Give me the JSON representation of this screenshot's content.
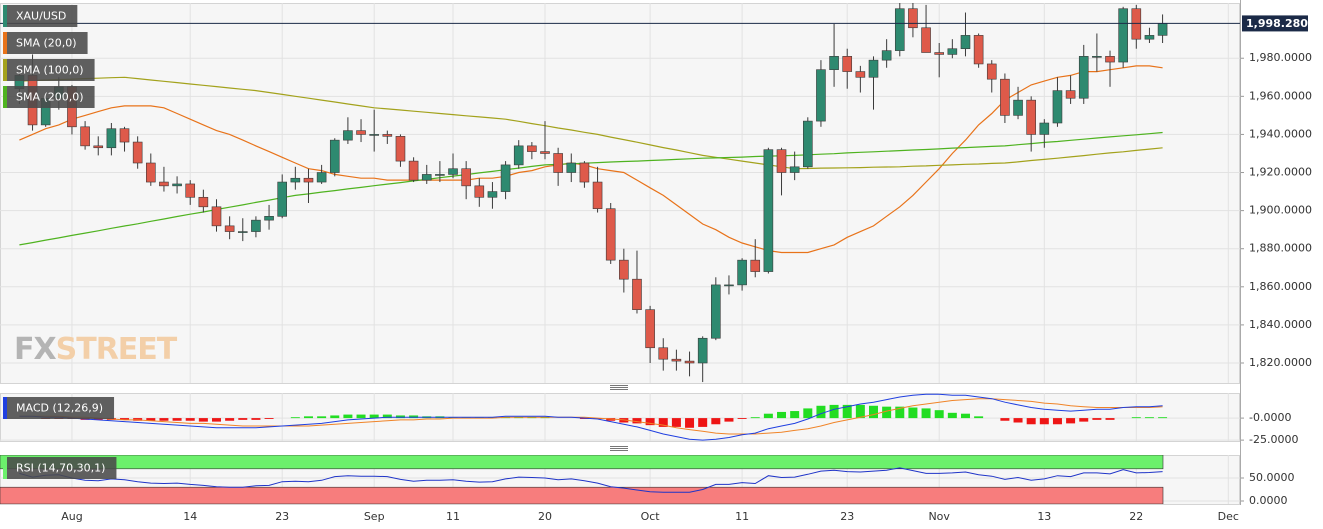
{
  "chart_data": [
    {
      "type": "candlestick",
      "name": "XAU/USD",
      "color_up": "#2e8a70",
      "color_down": "#de5a4a",
      "grid": true,
      "watermark": [
        "FX",
        "STREET"
      ],
      "categories": [
        null,
        null,
        null,
        null,
        "Aug",
        null,
        null,
        null,
        null,
        null,
        null,
        null,
        null,
        "14",
        null,
        null,
        null,
        null,
        null,
        null,
        "23",
        null,
        null,
        null,
        null,
        null,
        null,
        "Sep",
        null,
        null,
        null,
        null,
        null,
        "11",
        null,
        null,
        null,
        null,
        null,
        null,
        "20",
        null,
        null,
        null,
        null,
        null,
        null,
        null,
        "Oct",
        null,
        null,
        null,
        null,
        null,
        null,
        "11",
        null,
        null,
        null,
        null,
        null,
        null,
        null,
        "23",
        null,
        null,
        null,
        null,
        null,
        null,
        "Nov",
        null,
        null,
        null,
        null,
        null,
        null,
        null,
        "13",
        null,
        null,
        null,
        null,
        null,
        null,
        "22",
        null,
        null,
        null,
        null,
        null,
        null,
        "Dec"
      ],
      "open": [
        1964,
        1971,
        1945,
        1959,
        1965,
        1944,
        1934,
        1933,
        1943,
        1936,
        1925,
        1915,
        1913,
        1914,
        1907,
        1902,
        1892,
        1889,
        1889,
        1895,
        1897,
        1915,
        1917,
        1915,
        1920,
        1937,
        1942,
        1940,
        1940,
        1939,
        1926,
        1916,
        1919,
        1919,
        1922,
        1913,
        1907,
        1910,
        1924,
        1934,
        1931,
        1930,
        1920,
        1925,
        1915,
        1901,
        1874,
        1864,
        1848,
        1828,
        1822,
        1821,
        1820,
        1833,
        1861,
        1861,
        1874,
        1868,
        1932,
        1920,
        1923,
        1947,
        1974,
        1981,
        1973,
        1970,
        1979,
        1984,
        2006,
        1996,
        1983,
        1982,
        1985,
        1992,
        1977,
        1969,
        1950,
        1958,
        1940,
        1946,
        1963,
        1959,
        1981,
        1981,
        1978,
        2006,
        1990,
        1992,
        null,
        null,
        null,
        null,
        null
      ],
      "high": [
        1973,
        1982,
        1962,
        1970,
        1966,
        1947,
        1939,
        1946,
        1944,
        1939,
        1930,
        1923,
        1918,
        1916,
        1911,
        1906,
        1897,
        1896,
        1897,
        1903,
        1919,
        1923,
        1922,
        1924,
        1938,
        1949,
        1948,
        1953,
        1942,
        1940,
        1928,
        1924,
        1926,
        1930,
        1926,
        1917,
        1915,
        1926,
        1937,
        1936,
        1947,
        1933,
        1930,
        1926,
        1923,
        1904,
        1880,
        1879,
        1850,
        1833,
        1827,
        1826,
        1834,
        1865,
        1866,
        1875,
        1885,
        1933,
        1933,
        1931,
        1949,
        1979,
        1998,
        1985,
        1976,
        1981,
        1990,
        2009,
        2009,
        2008,
        1988,
        1990,
        2004,
        1993,
        1979,
        1972,
        1965,
        1960,
        1948,
        1970,
        1971,
        1987,
        1993,
        1984,
        2007,
        2008,
        1996,
        2003,
        null,
        null,
        null,
        null,
        null
      ],
      "low": [
        1956,
        1942,
        1944,
        1953,
        1940,
        1932,
        1929,
        1929,
        1931,
        1922,
        1913,
        1910,
        1909,
        1903,
        1899,
        1889,
        1885,
        1884,
        1886,
        1890,
        1896,
        1911,
        1904,
        1914,
        1918,
        1935,
        1936,
        1931,
        1935,
        1923,
        1915,
        1914,
        1915,
        1917,
        1906,
        1902,
        1901,
        1906,
        1922,
        1927,
        1927,
        1913,
        1915,
        1912,
        1899,
        1872,
        1857,
        1846,
        1820,
        1816,
        1816,
        1813,
        1810,
        1832,
        1856,
        1858,
        1865,
        1867,
        1908,
        1916,
        1922,
        1944,
        1965,
        1964,
        1962,
        1953,
        1975,
        1981,
        1991,
        1983,
        1970,
        1980,
        1981,
        1975,
        1962,
        1946,
        1948,
        1931,
        1933,
        1944,
        1956,
        1956,
        1973,
        1965,
        1975,
        1985,
        1988,
        1988,
        null,
        null,
        null,
        null,
        null
      ],
      "close": [
        1971,
        1945,
        1959,
        1965,
        1944,
        1934,
        1933,
        1943,
        1936,
        1925,
        1915,
        1913,
        1914,
        1907,
        1902,
        1892,
        1889,
        1889,
        1895,
        1897,
        1915,
        1917,
        1915,
        1920,
        1937,
        1942,
        1940,
        1940,
        1939,
        1926,
        1916,
        1919,
        1919,
        1922,
        1913,
        1907,
        1910,
        1924,
        1934,
        1931,
        1930,
        1920,
        1925,
        1915,
        1901,
        1874,
        1864,
        1848,
        1828,
        1822,
        1821,
        1820,
        1833,
        1861,
        1861,
        1874,
        1868,
        1932,
        1920,
        1923,
        1947,
        1974,
        1981,
        1973,
        1970,
        1979,
        1984,
        2006,
        1996,
        1983,
        1982,
        1985,
        1992,
        1977,
        1969,
        1950,
        1958,
        1940,
        1946,
        1963,
        1959,
        1981,
        1981,
        1978,
        2006,
        1990,
        1992,
        1998.28,
        null,
        null,
        null,
        null,
        null
      ],
      "overlays": [
        {
          "name": "SMA (20,0)",
          "color": "#e8731a",
          "values": [
            1937,
            1940,
            1943,
            1945,
            1948,
            1950,
            1952,
            1954,
            1955,
            1955,
            1955,
            1954,
            1951,
            1948,
            1945,
            1942,
            1940,
            1937,
            1934,
            1931,
            1928,
            1925,
            1922,
            1921,
            1919,
            1918,
            1917,
            1917,
            1916,
            1916,
            1916,
            1916,
            1916,
            1916,
            1916,
            1917,
            1917,
            1918,
            1920,
            1921,
            1923,
            1924,
            1925,
            1924,
            1922,
            1921,
            1920,
            1916,
            1912,
            1908,
            1903,
            1898,
            1893,
            1890,
            1886,
            1883,
            1881,
            1879,
            1878,
            1878,
            1878,
            1880,
            1882,
            1886,
            1889,
            1892,
            1897,
            1902,
            1908,
            1915,
            1922,
            1930,
            1937,
            1945,
            1951,
            1958,
            1962,
            1966,
            1968,
            1970,
            1971,
            1973,
            1973,
            1974,
            1975,
            1976,
            1976,
            1975,
            null,
            null,
            null,
            null,
            null
          ]
        },
        {
          "name": "SMA (100,0)",
          "color": "#a3a21c",
          "values": [
            1968,
            1968.3,
            1968.5,
            1968.8,
            1969,
            1969.3,
            1969.5,
            1969.8,
            1970,
            1969.3,
            1968.6,
            1967.9,
            1967.2,
            1966.5,
            1965.8,
            1965.1,
            1964.4,
            1963.7,
            1963,
            1962,
            1961,
            1960,
            1959,
            1958,
            1957,
            1956,
            1955,
            1954,
            1953.4,
            1952.8,
            1952.2,
            1951.6,
            1951,
            1950.4,
            1949.8,
            1949.2,
            1948.6,
            1948,
            1946.9,
            1945.7,
            1944.6,
            1943.4,
            1942.3,
            1941.1,
            1940,
            1938.6,
            1937.3,
            1935.9,
            1934.5,
            1933.1,
            1931.8,
            1930.4,
            1929,
            1928,
            1927,
            1926,
            1925,
            1924,
            1923,
            1922,
            1922.1,
            1922.3,
            1922.4,
            1922.5,
            1922.6,
            1922.8,
            1922.9,
            1923,
            1923.3,
            1923.5,
            1923.8,
            1924,
            1924.3,
            1924.5,
            1924.8,
            1925,
            1925.6,
            1926.3,
            1926.9,
            1927.5,
            1928.2,
            1928.9,
            1929.6,
            1930.3,
            1930.9,
            1931.6,
            1932.3,
            1933,
            null,
            null,
            null,
            null,
            null
          ]
        },
        {
          "name": "SMA (200,0)",
          "color": "#4fb320",
          "values": [
            1882,
            1883.2,
            1884.5,
            1885.7,
            1887,
            1888.2,
            1889.4,
            1890.7,
            1891.9,
            1893.1,
            1894.4,
            1895.6,
            1896.9,
            1898.1,
            1899.3,
            1900.6,
            1901.8,
            1903,
            1904.3,
            1905.5,
            1906.8,
            1908,
            1908.8,
            1909.7,
            1910.5,
            1911.4,
            1912.2,
            1913.1,
            1913.9,
            1914.7,
            1915.6,
            1916.4,
            1917.3,
            1918.1,
            1918.9,
            1919.8,
            1920.6,
            1921.5,
            1922.3,
            1923.2,
            1924,
            1924.3,
            1924.6,
            1924.9,
            1925.2,
            1925.5,
            1925.8,
            1926,
            1926.3,
            1926.6,
            1926.9,
            1927.2,
            1927.5,
            1927.7,
            1927.9,
            1928.1,
            1928.4,
            1928.6,
            1928.8,
            1929,
            1929.3,
            1929.6,
            1929.9,
            1930.3,
            1930.6,
            1930.9,
            1931.2,
            1931.5,
            1931.8,
            1932.1,
            1932.4,
            1932.8,
            1933.1,
            1933.4,
            1933.7,
            1934,
            1934.6,
            1935.2,
            1935.8,
            1936.3,
            1936.9,
            1937.5,
            1938.1,
            1938.7,
            1939.3,
            1939.8,
            1940.4,
            1941,
            null,
            null,
            null,
            null,
            null
          ]
        }
      ],
      "ylim": [
        1809.5,
        2009
      ],
      "yticks": [
        {
          "value": 1820,
          "label": "1,820.0000"
        },
        {
          "value": 1840,
          "label": "1,840.0000"
        },
        {
          "value": 1860,
          "label": "1,860.0000"
        },
        {
          "value": 1880,
          "label": "1,880.0000"
        },
        {
          "value": 1900,
          "label": "1,900.0000"
        },
        {
          "value": 1920,
          "label": "1,920.0000"
        },
        {
          "value": 1940,
          "label": "1,940.0000"
        },
        {
          "value": 1960,
          "label": "1,960.0000"
        },
        {
          "value": 1980,
          "label": "1,980.0000"
        }
      ],
      "price_line": {
        "value": 1998.28,
        "label": "1,998.2800"
      }
    },
    {
      "type": "macd",
      "name": "MACD (12,26,9)",
      "macd_color": "#1f3fe0",
      "signal_color": "#f08428",
      "hist_up_color": "#22dd22",
      "hist_down_color": "#ee1515",
      "macd": [
        2,
        2,
        1,
        1,
        0,
        -1,
        -2,
        -3,
        -4,
        -5,
        -6,
        -7,
        -8,
        -9,
        -10,
        -11,
        -11,
        -11,
        -11,
        -10,
        -9,
        -8,
        -7,
        -6,
        -4,
        -2,
        -1,
        0,
        1,
        1,
        1,
        1,
        1,
        1,
        1,
        1,
        1,
        2,
        2,
        2,
        2,
        1,
        1,
        0,
        -1,
        -4,
        -7,
        -10,
        -14,
        -18,
        -21,
        -24,
        -25,
        -24,
        -22,
        -19,
        -17,
        -12,
        -9,
        -6,
        -1,
        5,
        10,
        13,
        16,
        18,
        21,
        24,
        26,
        27,
        27,
        26,
        26,
        24,
        22,
        18,
        15,
        12,
        10,
        9,
        8,
        9,
        10,
        10,
        12,
        13,
        13,
        14,
        null,
        null,
        null,
        null,
        null
      ],
      "signal": [
        2,
        2,
        2,
        2,
        1,
        1,
        0,
        -1,
        -2,
        -2,
        -3,
        -4,
        -5,
        -6,
        -6,
        -7,
        -8,
        -9,
        -9,
        -9,
        -9,
        -9,
        -9,
        -8,
        -7,
        -6,
        -5,
        -4,
        -3,
        -2,
        -2,
        -1,
        -1,
        0,
        0,
        0,
        0,
        1,
        1,
        1,
        1,
        1,
        1,
        1,
        0,
        -1,
        -2,
        -4,
        -6,
        -8,
        -11,
        -13,
        -15,
        -17,
        -18,
        -18,
        -18,
        -17,
        -16,
        -14,
        -12,
        -9,
        -5,
        -2,
        1,
        4,
        8,
        11,
        14,
        16,
        18,
        20,
        21,
        22,
        22,
        21,
        20,
        19,
        17,
        16,
        14,
        13,
        12,
        12,
        12,
        12,
        12,
        13,
        null,
        null,
        null,
        null,
        null
      ],
      "histogram": [
        0,
        0,
        -1,
        -1,
        -1,
        -2,
        -2,
        -2,
        -2,
        -3,
        -3,
        -3,
        -3,
        -3,
        -4,
        -4,
        -3,
        -2,
        -2,
        -1,
        0,
        1,
        2,
        2,
        3,
        4,
        4,
        4,
        4,
        3,
        3,
        2,
        2,
        1,
        1,
        1,
        1,
        1,
        1,
        1,
        1,
        0,
        0,
        -1,
        -1,
        -3,
        -5,
        -6,
        -8,
        -10,
        -10,
        -11,
        -10,
        -7,
        -4,
        -1,
        1,
        5,
        7,
        8,
        11,
        14,
        15,
        15,
        15,
        14,
        13,
        13,
        12,
        11,
        9,
        6,
        5,
        2,
        0,
        -3,
        -5,
        -7,
        -7,
        -7,
        -6,
        -4,
        -2,
        -2,
        0,
        1,
        1,
        1,
        null,
        null,
        null,
        null,
        null
      ],
      "ylim": [
        -26,
        28.5
      ],
      "yticks": [
        {
          "value": 0,
          "label": "-0.0000"
        },
        {
          "value": -25,
          "label": "-25.0000"
        }
      ]
    },
    {
      "type": "rsi",
      "name": "RSI (14,70,30,1)",
      "color": "#1f34c8",
      "overbought": 70,
      "oversold": 30,
      "overbought_color": "#6cf06c",
      "oversold_color": "#f77d7d",
      "values": [
        60,
        52,
        56,
        57,
        50,
        45,
        44,
        48,
        46,
        42,
        39,
        38,
        39,
        36,
        34,
        31,
        30,
        30,
        33,
        34,
        42,
        43,
        42,
        45,
        53,
        55,
        54,
        54,
        53,
        47,
        43,
        45,
        45,
        46,
        43,
        41,
        42,
        48,
        52,
        51,
        50,
        46,
        48,
        44,
        39,
        31,
        28,
        24,
        20,
        19,
        19,
        19,
        25,
        36,
        36,
        40,
        38,
        55,
        51,
        52,
        58,
        65,
        67,
        64,
        63,
        65,
        67,
        72,
        66,
        60,
        60,
        61,
        63,
        57,
        54,
        47,
        51,
        45,
        48,
        55,
        53,
        61,
        61,
        59,
        68,
        61,
        62,
        64,
        null,
        null,
        null,
        null,
        null
      ],
      "ylim": [
        -6.5,
        100
      ],
      "yticks": [
        {
          "value": 50,
          "label": "50.0000"
        },
        {
          "value": 0,
          "label": "0.0000"
        }
      ]
    }
  ]
}
